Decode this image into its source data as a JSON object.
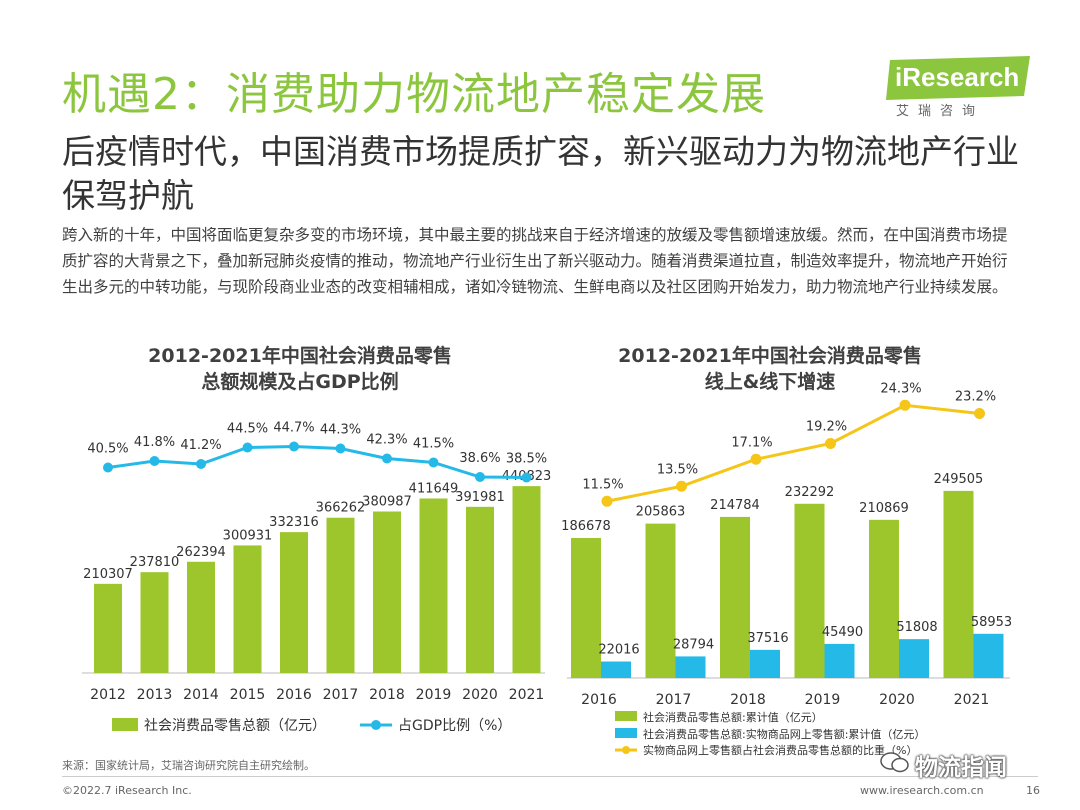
{
  "header": {
    "title": "机遇2：消费助力物流地产稳定发展",
    "subtitle": "后疫情时代，中国消费市场提质扩容，新兴驱动力为物流地产行业保驾护航",
    "body": "跨入新的十年，中国将面临更复杂多变的市场环境，其中最主要的挑战来自于经济增速的放缓及零售额增速放缓。然而，在中国消费市场提质扩容的大背景之下，叠加新冠肺炎疫情的推动，物流地产行业衍生出了新兴驱动力。随着消费渠道拉直，制造效率提升，物流地产开始衍生出多元的中转功能，与现阶段商业业态的改变相辅相成，诸如冷链物流、生鲜电商以及社区团购开始发力，助力物流地产行业持续发展。"
  },
  "logo": {
    "name": "iResearch",
    "sub": "艾瑞咨询"
  },
  "colors": {
    "green": "#9dc62d",
    "cyan": "#25b9e8",
    "yellow": "#f5c518",
    "title_green": "#8cc63f"
  },
  "chart_data": [
    {
      "type": "bar",
      "title": [
        "2012-2021年中国社会消费品零售",
        "总额规模及占GDP比例"
      ],
      "categories": [
        "2012",
        "2013",
        "2014",
        "2015",
        "2016",
        "2017",
        "2018",
        "2019",
        "2020",
        "2021"
      ],
      "series": [
        {
          "name": "社会消费品零售总额（亿元）",
          "kind": "bar",
          "values": [
            210307,
            237810,
            262394,
            300931,
            332316,
            366262,
            380987,
            411649,
            391981,
            440823
          ],
          "labels": [
            "210307",
            "237810",
            "262394",
            "300931",
            "332316",
            "366262",
            "380987",
            "411649",
            "391981",
            "440823"
          ]
        },
        {
          "name": "占GDP比例（%）",
          "kind": "line",
          "values": [
            40.5,
            41.8,
            41.2,
            44.5,
            44.7,
            44.3,
            42.3,
            41.5,
            38.6,
            38.5
          ],
          "labels": [
            "40.5%",
            "41.8%",
            "41.2%",
            "44.5%",
            "44.7%",
            "44.3%",
            "42.3%",
            "41.5%",
            "38.6%",
            "38.5%"
          ]
        }
      ],
      "ylim": [
        0,
        460000
      ],
      "line_ylim": [
        30,
        50
      ]
    },
    {
      "type": "bar",
      "title": [
        "2012-2021年中国社会消费品零售",
        "线上&线下增速"
      ],
      "categories": [
        "2016",
        "2017",
        "2018",
        "2019",
        "2020",
        "2021"
      ],
      "series": [
        {
          "name": "社会消费品零售总额:累计值（亿元）",
          "kind": "bar",
          "values": [
            186678,
            205863,
            214784,
            232292,
            210869,
            249505
          ],
          "labels": [
            "186678",
            "205863",
            "214784",
            "232292",
            "210869",
            "249505"
          ]
        },
        {
          "name": "社会消费品零售总额:实物商品网上零售额:累计值（亿元）",
          "kind": "bar",
          "values": [
            22016,
            28794,
            37516,
            45490,
            51808,
            58953
          ],
          "labels": [
            "22016",
            "28794",
            "37516",
            "45490",
            "51808",
            "58953"
          ]
        },
        {
          "name": "实物商品网上零售额占社会消费品零售总额的比重（%）",
          "kind": "line",
          "values": [
            11.5,
            13.5,
            17.1,
            19.2,
            24.3,
            23.2
          ],
          "labels": [
            "11.5%",
            "13.5%",
            "17.1%",
            "19.2%",
            "24.3%",
            "23.2%"
          ]
        }
      ],
      "ylim": [
        0,
        260000
      ],
      "line_ylim": [
        5,
        27
      ]
    }
  ],
  "footer": {
    "source": "来源：国家统计局，艾瑞咨询研究院自主研究绘制。",
    "copyright": "©2022.7 iResearch Inc.",
    "site": "www.iresearch.com.cn",
    "page": "16",
    "watermark": "物流指闻"
  }
}
